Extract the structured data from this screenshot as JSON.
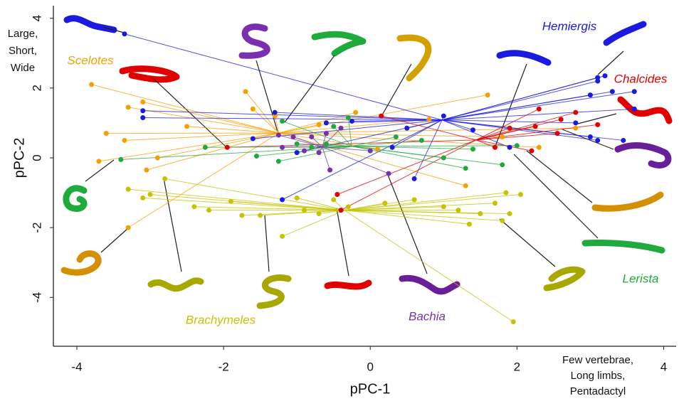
{
  "chart_data": {
    "type": "scatter",
    "x_label": "pPC-1",
    "y_label": "pPC-2",
    "annotations": [
      [
        "Large,",
        "Short,",
        "Wide"
      ],
      [
        "Few vertebrae,",
        "Long limbs,",
        "Pentadactyl"
      ]
    ],
    "xlim": [
      -4.32,
      4.17
    ],
    "ylim": [
      -5.4,
      4.36
    ],
    "xticks": [
      -4,
      -2,
      0,
      2,
      4
    ],
    "yticks": [
      -4,
      -2,
      0,
      2,
      4
    ],
    "series": [
      {
        "name": "Scelotes",
        "color": "#f5a000",
        "x": [
          -3.8,
          -3.3,
          -3.1,
          -3.7,
          -3.3,
          -1.7,
          -1.6,
          -1.3,
          -2.5,
          -0.2,
          1.6,
          1.8,
          2.3,
          1.3,
          -0.7,
          0.8,
          -3.35,
          -3.6,
          -2.9,
          -3.05,
          0.1,
          2.8
        ],
        "values": [
          2.1,
          1.45,
          1.6,
          -0.1,
          -2.0,
          1.9,
          1.4,
          1.2,
          0.9,
          1.3,
          1.8,
          0.6,
          0.3,
          -0.8,
          0.95,
          1.1,
          0.5,
          0.7,
          0.0,
          -0.35,
          0.25,
          0.85
        ]
      },
      {
        "name": "Hemiergis",
        "color": "#1a1ae0",
        "x": [
          -3.35,
          -3.1,
          -3.1,
          -1.6,
          -1.3,
          -1.0,
          -1.2,
          -0.6,
          -0.25,
          0.3,
          0.6,
          0.5,
          1.0,
          1.4,
          1.9,
          3.0,
          3.1,
          3.2,
          3.1,
          3.3,
          3.6,
          3.6,
          3.0,
          3.1,
          3.45,
          2.8
        ],
        "values": [
          3.55,
          1.35,
          1.15,
          0.55,
          1.3,
          0.15,
          -1.2,
          1.0,
          1.05,
          0.3,
          -0.6,
          0.85,
          1.2,
          0.8,
          0.3,
          1.8,
          2.3,
          2.35,
          2.2,
          1.9,
          1.9,
          1.4,
          0.6,
          0.5,
          0.5,
          1.0
        ]
      },
      {
        "name": "Chalcides",
        "color": "#e00000",
        "x": [
          -1.95,
          0.15,
          -0.45,
          -0.4,
          1.7,
          2.2,
          2.3,
          2.6,
          2.8,
          3.1,
          2.55,
          1.9,
          2.25
        ],
        "values": [
          0.3,
          1.2,
          -1.05,
          -1.5,
          0.3,
          0.2,
          1.4,
          1.1,
          1.3,
          0.95,
          0.7,
          0.85,
          0.9
        ]
      },
      {
        "name": "Lerista",
        "color": "#1faa3c",
        "x": [
          -1.2,
          -2.25,
          -3.4,
          -1.55,
          -1.0,
          -0.8,
          -0.5,
          -0.3,
          -0.6,
          0.35,
          0.7,
          1.0,
          1.3,
          1.4,
          1.8,
          2.0,
          -1.25
        ],
        "values": [
          1.05,
          0.3,
          -0.05,
          0.05,
          0.4,
          0.3,
          0.9,
          1.15,
          0.4,
          0.6,
          0.5,
          0.0,
          -0.3,
          0.25,
          -0.2,
          0.35,
          -0.1
        ]
      },
      {
        "name": "Brachymeles",
        "color": "#c4c400",
        "x": [
          -3.3,
          -3.0,
          -2.8,
          -2.4,
          -2.2,
          -1.9,
          -1.5,
          -1.2,
          -1.0,
          -0.9,
          -0.7,
          -0.5,
          -0.3,
          0.2,
          0.6,
          1.0,
          1.2,
          1.5,
          1.7,
          1.85,
          1.9,
          2.05,
          1.8,
          1.95,
          1.35,
          -1.75,
          -3.1
        ],
        "values": [
          -0.9,
          -1.05,
          -0.6,
          -1.4,
          -1.5,
          -1.25,
          -1.65,
          -2.25,
          -1.15,
          -1.5,
          -1.6,
          -1.2,
          -1.4,
          -1.3,
          -1.2,
          -1.4,
          -1.5,
          -1.6,
          -1.3,
          -1.0,
          -1.6,
          -1.05,
          -1.8,
          -4.7,
          -1.9,
          -1.65,
          -1.15
        ]
      },
      {
        "name": "Bachia",
        "color": "#7a2fb0",
        "x": [
          -1.25,
          -1.05,
          -1.2,
          -0.9,
          -0.7,
          -0.55,
          -0.6,
          -0.4,
          0.25,
          0.0,
          -0.8
        ],
        "values": [
          0.65,
          0.6,
          0.3,
          0.2,
          0.15,
          -0.35,
          0.7,
          0.85,
          -0.45,
          0.2,
          0.6
        ]
      }
    ]
  }
}
